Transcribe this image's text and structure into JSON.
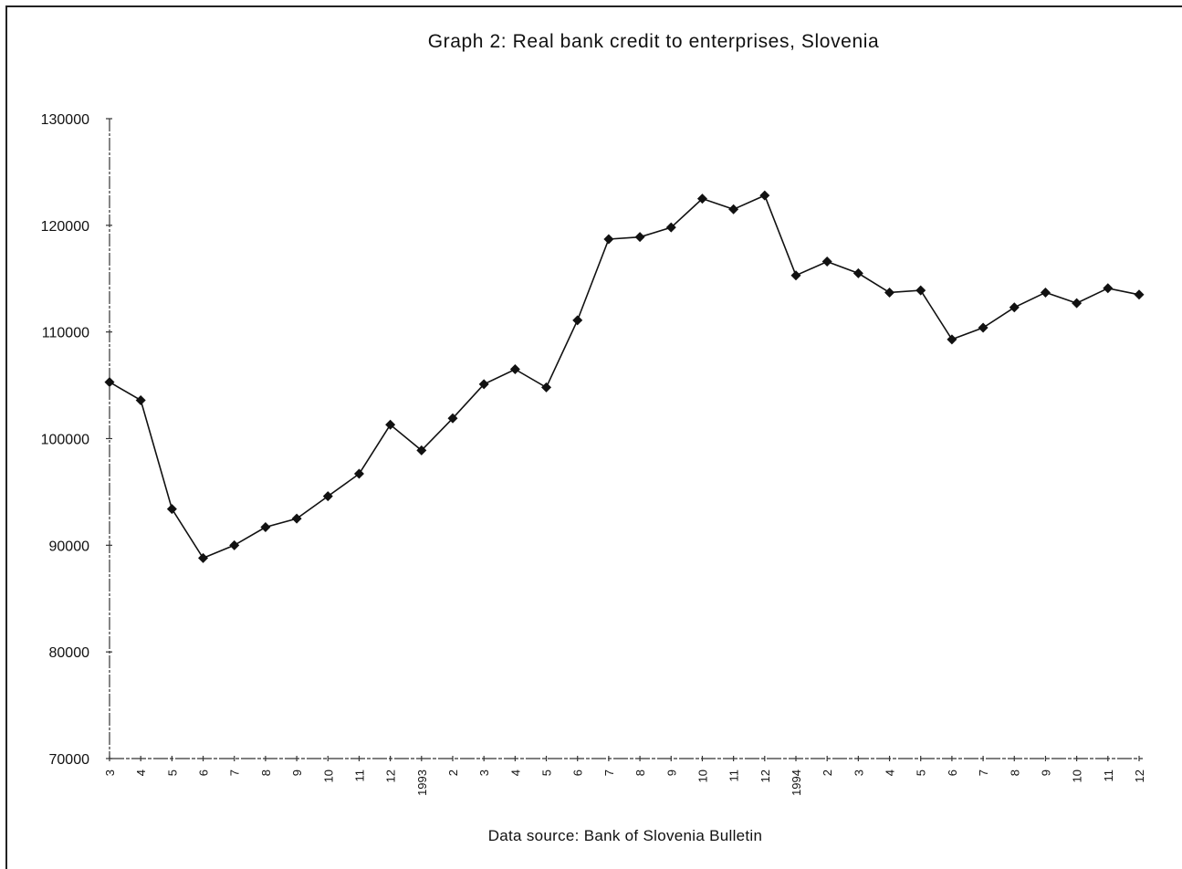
{
  "chart_data": {
    "type": "line",
    "title": "Graph 2: Real bank credit to enterprises, Slovenia",
    "source": "Data source: Bank of Slovenia Bulletin",
    "xlabel": "",
    "ylabel": "",
    "ylim": [
      70000,
      130000
    ],
    "yticks": [
      "70000",
      "80000",
      "90000",
      "100000",
      "110000",
      "120000",
      "130000"
    ],
    "categories": [
      "3",
      "4",
      "5",
      "6",
      "7",
      "8",
      "9",
      "10",
      "11",
      "12",
      "1993",
      "2",
      "3",
      "4",
      "5",
      "6",
      "7",
      "8",
      "9",
      "10",
      "11",
      "12",
      "1994",
      "2",
      "3",
      "4",
      "5",
      "6",
      "7",
      "8",
      "9",
      "10",
      "11",
      "12"
    ],
    "series": [
      {
        "values": [
          105300,
          103600,
          93400,
          88800,
          90000,
          91700,
          92500,
          94600,
          96700,
          101300,
          98900,
          101900,
          105100,
          106500,
          104800,
          111100,
          118700,
          118900,
          119800,
          122500,
          121500,
          122800,
          115300,
          116600,
          115500,
          113700,
          113900,
          109300,
          110400,
          112300,
          113700,
          112700,
          114100,
          113500
        ],
        "color": "#111111",
        "marker": "diamond"
      }
    ],
    "grid": false,
    "legend": "none"
  }
}
